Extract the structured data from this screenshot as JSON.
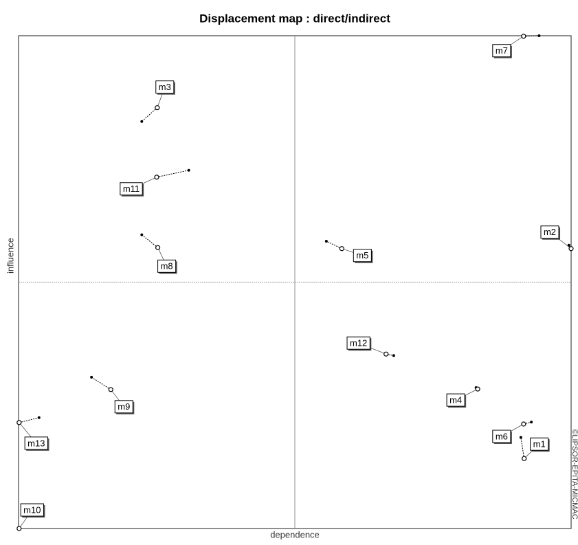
{
  "chart_data": {
    "type": "displacement",
    "title": "Displacement map : direct/indirect",
    "xlabel": "dependence",
    "ylabel": "influence",
    "credit": "©LIPSOR-EPITA-MICMAC",
    "xlim": [
      0,
      100
    ],
    "ylim": [
      0,
      100
    ],
    "categories": [
      "m1",
      "m2",
      "m3",
      "m4",
      "m5",
      "m6",
      "m7",
      "m8",
      "m9",
      "m10",
      "m11",
      "m12",
      "m13"
    ],
    "x": [
      91.5,
      100,
      25.1,
      83.1,
      58.5,
      91.4,
      91.4,
      25.2,
      16.7,
      0.1,
      25.0,
      66.5,
      0.1
    ],
    "y": [
      14.2,
      56.8,
      85.4,
      28.3,
      56.8,
      21.2,
      99.9,
      57.0,
      28.2,
      0,
      71.3,
      35.4,
      21.5
    ],
    "x_end": [
      90.9,
      99.6,
      22.3,
      82.8,
      55.7,
      92.8,
      94.2,
      22.3,
      13.2,
      0.1,
      30.8,
      67.9,
      3.7
    ],
    "y_end": [
      18.5,
      57.5,
      82.6,
      28.6,
      58.3,
      21.6,
      100,
      59.6,
      30.7,
      0,
      72.7,
      35.1,
      22.5
    ],
    "color": "#000000"
  }
}
